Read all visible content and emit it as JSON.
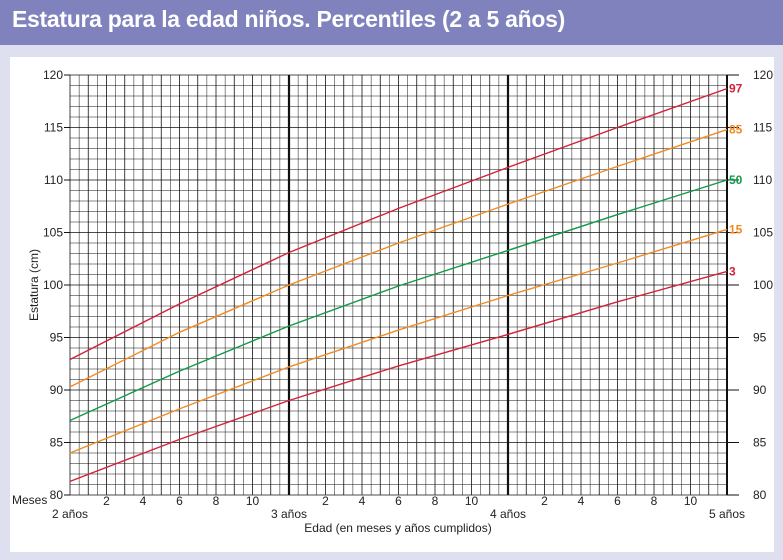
{
  "header": {
    "title": "Estatura para la edad niños. Percentiles (2 a 5 años)"
  },
  "colors": {
    "header_bg": "#7f82bd",
    "page_bg": "#dfe0ef",
    "p3": "#d4213a",
    "p15": "#f28a21",
    "p50": "#0f9a48",
    "p85": "#f28a21",
    "p97": "#d4213a"
  },
  "chart_data": {
    "type": "line",
    "title": "Estatura para la edad niños. Percentiles (2 a 5 años)",
    "xlabel": "Edad (en meses y años cumplidos)",
    "ylabel": "Estatura (cm)",
    "x_unit_label": "Meses",
    "xlim": [
      24,
      60
    ],
    "ylim": [
      80,
      120
    ],
    "grid": true,
    "x_month_ticks": [
      "2",
      "4",
      "6",
      "8",
      "10"
    ],
    "year_labels": [
      {
        "x": 24,
        "label": "2 años"
      },
      {
        "x": 36,
        "label": "3 años"
      },
      {
        "x": 48,
        "label": "4 años"
      },
      {
        "x": 60,
        "label": "5 años"
      }
    ],
    "y_ticks": [
      80,
      85,
      90,
      95,
      100,
      105,
      110,
      115,
      120
    ],
    "x": [
      24,
      30,
      36,
      42,
      48,
      54,
      60
    ],
    "series": [
      {
        "name": "97",
        "color_key": "p97",
        "values": [
          92.9,
          98.2,
          103.1,
          107.3,
          111.2,
          115.0,
          118.7
        ]
      },
      {
        "name": "85",
        "color_key": "p85",
        "values": [
          90.3,
          95.5,
          100.0,
          104.0,
          107.7,
          111.3,
          114.8
        ]
      },
      {
        "name": "50",
        "color_key": "p50",
        "values": [
          87.1,
          91.8,
          96.1,
          99.9,
          103.3,
          106.7,
          110.0
        ]
      },
      {
        "name": "15",
        "color_key": "p15",
        "values": [
          84.0,
          88.2,
          92.2,
          95.7,
          99.0,
          102.1,
          105.3
        ]
      },
      {
        "name": "3",
        "color_key": "p3",
        "values": [
          81.3,
          85.3,
          89.0,
          92.3,
          95.3,
          98.4,
          101.3
        ]
      }
    ]
  }
}
